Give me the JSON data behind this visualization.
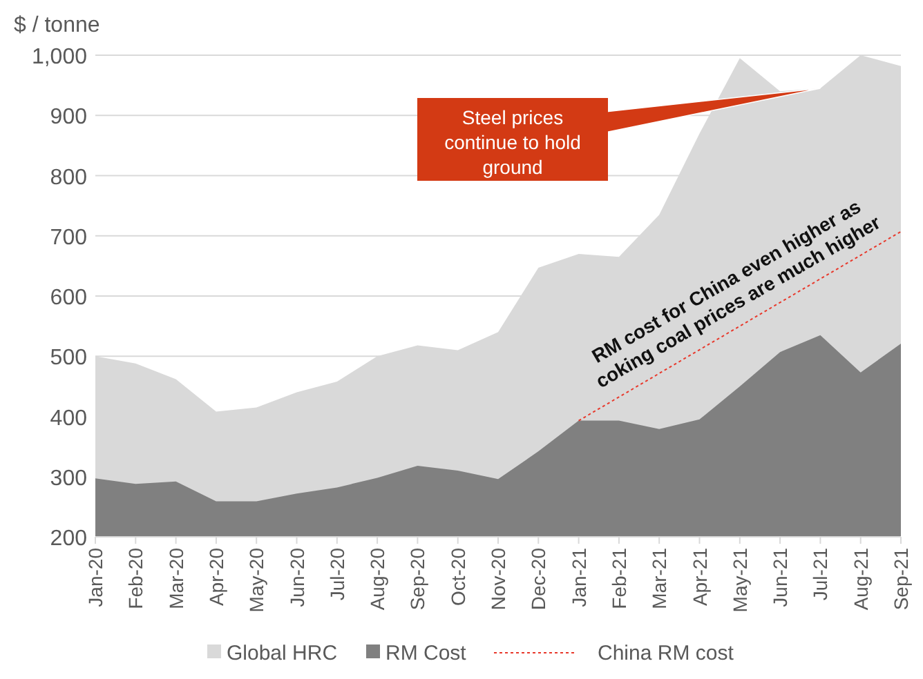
{
  "chart_data": {
    "type": "area",
    "ylabel": "$ / tonne",
    "categories": [
      "Jan-20",
      "Feb-20",
      "Mar-20",
      "Apr-20",
      "May-20",
      "Jun-20",
      "Jul-20",
      "Aug-20",
      "Sep-20",
      "Oct-20",
      "Nov-20",
      "Dec-20",
      "Jan-21",
      "Feb-21",
      "Mar-21",
      "Apr-21",
      "May-21",
      "Jun-21",
      "Jul-21",
      "Aug-21",
      "Sep-21"
    ],
    "series": [
      {
        "name": "Global HRC",
        "color": "#d9d9d9",
        "values": [
          500,
          488,
          462,
          408,
          415,
          440,
          458,
          500,
          518,
          510,
          540,
          647,
          670,
          665,
          735,
          870,
          995,
          940,
          945,
          1000,
          982
        ]
      },
      {
        "name": "RM Cost",
        "color": "#808080",
        "values": [
          297,
          288,
          292,
          259,
          259,
          272,
          282,
          298,
          318,
          310,
          296,
          342,
          393,
          393,
          379,
          395,
          450,
          507,
          535,
          473,
          521
        ]
      },
      {
        "name": "China RM cost",
        "type": "line",
        "color": "#e8382b",
        "line_style": "dotted",
        "x": [
          "Jan-21",
          "Sep-21"
        ],
        "values": [
          393,
          707
        ]
      }
    ],
    "ylim": [
      200,
      1000
    ],
    "yticks": [
      200,
      300,
      400,
      500,
      600,
      700,
      800,
      900,
      {
        "value": 1000,
        "label": "1,000"
      }
    ],
    "grid": "y",
    "legend": "bottom",
    "annotations": [
      {
        "text": "Steel prices continue to hold ground",
        "x": "Jul-21",
        "y": 945
      },
      "RM cost for China even higher as coking coal prices are much higher"
    ]
  }
}
